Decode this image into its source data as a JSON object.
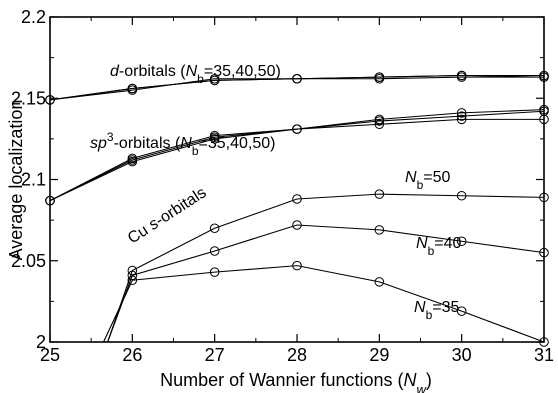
{
  "chart_data": {
    "type": "line",
    "title": "",
    "xlabel": "Number of Wannier functions (N_w)",
    "xlabel_parts": {
      "main": "Number of Wannier functions (",
      "sym": "N",
      "sub": "w",
      "end": ")"
    },
    "ylabel": "Average localization",
    "xlim": [
      25,
      31
    ],
    "ylim": [
      2.0,
      2.2
    ],
    "xticks": [
      25,
      26,
      27,
      28,
      29,
      30,
      31
    ],
    "yticks": [
      2.0,
      2.05,
      2.1,
      2.15,
      2.2
    ],
    "xtick_labels": [
      "25",
      "26",
      "27",
      "28",
      "29",
      "30",
      "31"
    ],
    "ytick_labels": [
      "2",
      "2.05",
      "2.1",
      "2.15",
      "2.2"
    ],
    "grid": false,
    "marker": "open-circle",
    "line_color": "#000000",
    "series": [
      {
        "group": "d",
        "Nb": 35,
        "x": [
          25,
          26,
          27,
          28,
          29,
          30,
          31
        ],
        "y": [
          2.149,
          2.156,
          2.161,
          2.162,
          2.162,
          2.163,
          2.163
        ]
      },
      {
        "group": "d",
        "Nb": 40,
        "x": [
          25,
          26,
          27,
          28,
          29,
          30,
          31
        ],
        "y": [
          2.149,
          2.156,
          2.161,
          2.162,
          2.163,
          2.164,
          2.163
        ]
      },
      {
        "group": "d",
        "Nb": 50,
        "x": [
          25,
          26,
          27,
          28,
          29,
          30,
          31
        ],
        "y": [
          2.149,
          2.155,
          2.162,
          2.162,
          2.163,
          2.164,
          2.164
        ]
      },
      {
        "group": "sp3",
        "Nb": 35,
        "x": [
          25,
          26,
          27,
          28,
          29,
          30,
          31
        ],
        "y": [
          2.087,
          2.111,
          2.125,
          2.131,
          2.134,
          2.137,
          2.137
        ]
      },
      {
        "group": "sp3",
        "Nb": 40,
        "x": [
          25,
          26,
          27,
          28,
          29,
          30,
          31
        ],
        "y": [
          2.087,
          2.112,
          2.126,
          2.131,
          2.136,
          2.139,
          2.142
        ]
      },
      {
        "group": "sp3",
        "Nb": 50,
        "x": [
          25,
          26,
          27,
          28,
          29,
          30,
          31
        ],
        "y": [
          2.087,
          2.113,
          2.127,
          2.131,
          2.137,
          2.141,
          2.143
        ]
      },
      {
        "group": "s",
        "Nb": 50,
        "x": [
          25.7,
          26,
          27,
          28,
          29,
          30,
          31
        ],
        "y": [
          2.0,
          2.044,
          2.07,
          2.088,
          2.091,
          2.09,
          2.089
        ]
      },
      {
        "group": "s",
        "Nb": 40,
        "x": [
          25.7,
          26,
          27,
          28,
          29,
          30,
          31
        ],
        "y": [
          2.0,
          2.041,
          2.056,
          2.072,
          2.069,
          2.062,
          2.055
        ]
      },
      {
        "group": "s",
        "Nb": 35,
        "x": [
          25.65,
          26,
          27,
          28,
          29,
          30,
          31
        ],
        "y": [
          2.0,
          2.038,
          2.043,
          2.047,
          2.037,
          2.019,
          2.0
        ]
      }
    ],
    "annotations": {
      "d": {
        "sym": "d",
        "text": "-orbitals (",
        "N": "N",
        "sub": "b",
        "val": "=35,40,50)"
      },
      "sp3": {
        "sym": "sp",
        "sup": "3",
        "text": "-orbitals (",
        "N": "N",
        "sub": "b",
        "val": "=35,40,50)"
      },
      "cu": {
        "pre": "Cu ",
        "sym": "s",
        "text": "-orbitals"
      },
      "nb50": {
        "N": "N",
        "sub": "b",
        "val": "=50"
      },
      "nb40": {
        "N": "N",
        "sub": "b",
        "val": "=40"
      },
      "nb35": {
        "N": "N",
        "sub": "b",
        "val": "=35"
      }
    }
  }
}
